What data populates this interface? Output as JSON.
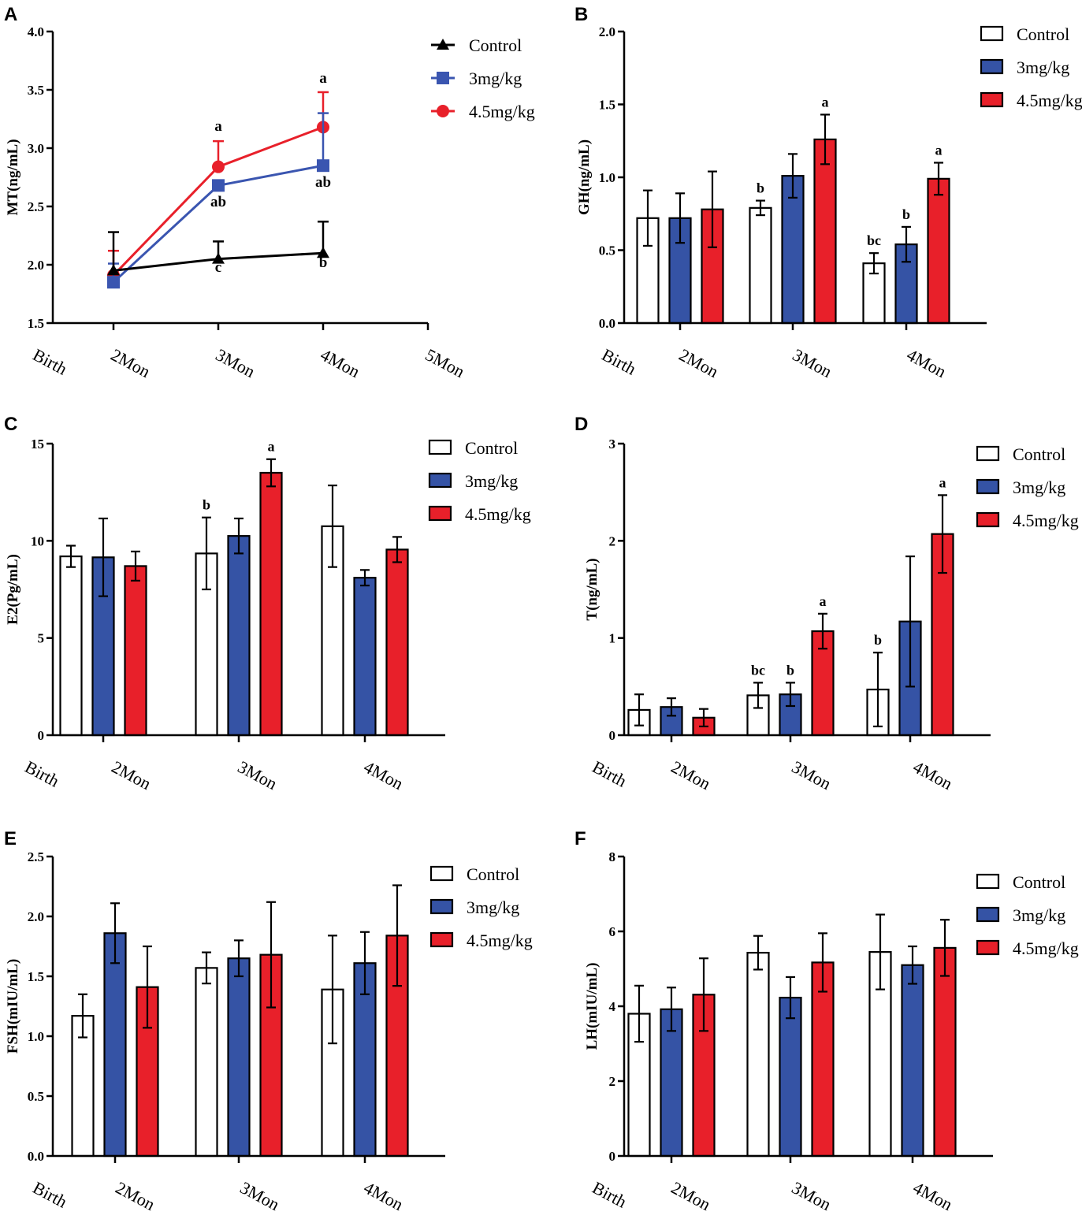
{
  "figure": {
    "colors": {
      "control": "#ffffff",
      "dose3": "#3553a5",
      "dose45": "#e8202a",
      "line_control": "#000000",
      "line_dose3": "#3a55b0",
      "line_dose45": "#e8202a",
      "axis": "#000000"
    },
    "legend": [
      "Control",
      "3mg/kg",
      "4.5mg/kg"
    ]
  },
  "chart_data": [
    {
      "panel": "A",
      "type": "line",
      "ylabel": "MT(ng/mL)",
      "yticks": [
        "1.5",
        "2.0",
        "2.5",
        "3.0",
        "3.5",
        "4.0"
      ],
      "ylim": [
        1.5,
        4.0
      ],
      "categories": [
        "Birth",
        "2Mon",
        "3Mon",
        "4Mon",
        "5Mon"
      ],
      "series": [
        {
          "name": "Control",
          "x": [
            1,
            2,
            3
          ],
          "values": [
            1.95,
            2.05,
            2.1
          ],
          "err": [
            0.33,
            0.15,
            0.27
          ]
        },
        {
          "name": "3mg/kg",
          "x": [
            1,
            2,
            3
          ],
          "values": [
            1.85,
            2.68,
            2.85
          ],
          "err": [
            0.16,
            0.0,
            0.45
          ]
        },
        {
          "name": "4.5mg/kg",
          "x": [
            1,
            2,
            3
          ],
          "values": [
            1.91,
            2.84,
            3.18
          ],
          "err": [
            0.21,
            0.22,
            0.3
          ]
        }
      ],
      "annotations": [
        {
          "text": "a",
          "x": 2,
          "y": 3.15
        },
        {
          "text": "ab",
          "x": 2,
          "y": 2.5
        },
        {
          "text": "c",
          "x": 2,
          "y": 1.94
        },
        {
          "text": "a",
          "x": 3,
          "y": 3.56
        },
        {
          "text": "ab",
          "x": 3,
          "y": 2.67
        },
        {
          "text": "b",
          "x": 3,
          "y": 1.98
        }
      ]
    },
    {
      "panel": "B",
      "type": "bar",
      "ylabel": "GH(ng/mL)",
      "yticks": [
        "0.0",
        "0.5",
        "1.0",
        "1.5",
        "2.0"
      ],
      "ylim": [
        0,
        2.0
      ],
      "categories": [
        "2Mon",
        "3Mon",
        "4Mon"
      ],
      "series": [
        {
          "name": "Control",
          "values": [
            0.72,
            0.79,
            0.41
          ],
          "err": [
            0.19,
            0.05,
            0.07
          ]
        },
        {
          "name": "3mg/kg",
          "values": [
            0.72,
            1.01,
            0.54
          ],
          "err": [
            0.17,
            0.15,
            0.12
          ]
        },
        {
          "name": "4.5mg/kg",
          "values": [
            0.78,
            1.26,
            0.99
          ],
          "err": [
            0.26,
            0.17,
            0.11
          ]
        }
      ],
      "letters": [
        [
          "",
          "b",
          "bc"
        ],
        [
          "",
          "",
          "b"
        ],
        [
          "",
          "a",
          "a"
        ]
      ]
    },
    {
      "panel": "C",
      "type": "bar",
      "ylabel": "E2(Pg/mL)",
      "yticks": [
        "0",
        "5",
        "10",
        "15"
      ],
      "ylim": [
        0,
        15
      ],
      "categories": [
        "2Mon",
        "3Mon",
        "4Mon"
      ],
      "series": [
        {
          "name": "Control",
          "values": [
            9.2,
            9.35,
            10.75
          ],
          "err": [
            0.55,
            1.85,
            2.1
          ]
        },
        {
          "name": "3mg/kg",
          "values": [
            9.15,
            10.25,
            8.1
          ],
          "err": [
            2.0,
            0.9,
            0.4
          ]
        },
        {
          "name": "4.5mg/kg",
          "values": [
            8.7,
            13.5,
            9.55
          ],
          "err": [
            0.75,
            0.7,
            0.65
          ]
        }
      ],
      "letters": [
        [
          "",
          "b",
          ""
        ],
        [
          "",
          "",
          ""
        ],
        [
          "",
          "a",
          ""
        ]
      ]
    },
    {
      "panel": "D",
      "type": "bar",
      "ylabel": "T(ng/mL)",
      "yticks": [
        "0",
        "1",
        "2",
        "3"
      ],
      "ylim": [
        0,
        3
      ],
      "categories": [
        "2Mon",
        "3Mon",
        "4Mon"
      ],
      "series": [
        {
          "name": "Control",
          "values": [
            0.26,
            0.41,
            0.47
          ],
          "err": [
            0.16,
            0.13,
            0.38
          ]
        },
        {
          "name": "3mg/kg",
          "values": [
            0.29,
            0.42,
            1.17
          ],
          "err": [
            0.09,
            0.12,
            0.67
          ]
        },
        {
          "name": "4.5mg/kg",
          "values": [
            0.18,
            1.07,
            2.07
          ],
          "err": [
            0.09,
            0.18,
            0.4
          ]
        }
      ],
      "letters": [
        [
          "",
          "bc",
          "b"
        ],
        [
          "",
          "b",
          ""
        ],
        [
          "",
          "a",
          "a"
        ]
      ]
    },
    {
      "panel": "E",
      "type": "bar",
      "ylabel": "FSH(mIU/mL)",
      "yticks": [
        "0.0",
        "0.5",
        "1.0",
        "1.5",
        "2.0",
        "2.5"
      ],
      "ylim": [
        0,
        2.5
      ],
      "categories": [
        "2Mon",
        "3Mon",
        "4Mon"
      ],
      "series": [
        {
          "name": "Control",
          "values": [
            1.17,
            1.57,
            1.39
          ],
          "err": [
            0.18,
            0.13,
            0.45
          ]
        },
        {
          "name": "3mg/kg",
          "values": [
            1.86,
            1.65,
            1.61
          ],
          "err": [
            0.25,
            0.15,
            0.26
          ]
        },
        {
          "name": "4.5mg/kg",
          "values": [
            1.41,
            1.68,
            1.84
          ],
          "err": [
            0.34,
            0.44,
            0.42
          ]
        }
      ],
      "letters": [
        [
          "",
          "",
          ""
        ],
        [
          "",
          "",
          ""
        ],
        [
          "",
          "",
          ""
        ]
      ]
    },
    {
      "panel": "F",
      "type": "bar",
      "ylabel": "LH(mIU/mL)",
      "yticks": [
        "0",
        "2",
        "4",
        "6",
        "8"
      ],
      "ylim": [
        0,
        8
      ],
      "categories": [
        "2Mon",
        "3Mon",
        "4Mon"
      ],
      "series": [
        {
          "name": "Control",
          "values": [
            3.8,
            5.43,
            5.45
          ],
          "err": [
            0.75,
            0.45,
            1.0
          ]
        },
        {
          "name": "3mg/kg",
          "values": [
            3.92,
            4.23,
            5.1
          ],
          "err": [
            0.58,
            0.55,
            0.5
          ]
        },
        {
          "name": "4.5mg/kg",
          "values": [
            4.31,
            5.17,
            5.56
          ],
          "err": [
            0.97,
            0.78,
            0.75
          ]
        }
      ],
      "letters": [
        [
          "",
          "",
          ""
        ],
        [
          "",
          "",
          ""
        ],
        [
          "",
          "",
          ""
        ]
      ]
    }
  ],
  "bar_x_labels": [
    "Birth",
    "2Mon",
    "3Mon",
    "4Mon"
  ]
}
